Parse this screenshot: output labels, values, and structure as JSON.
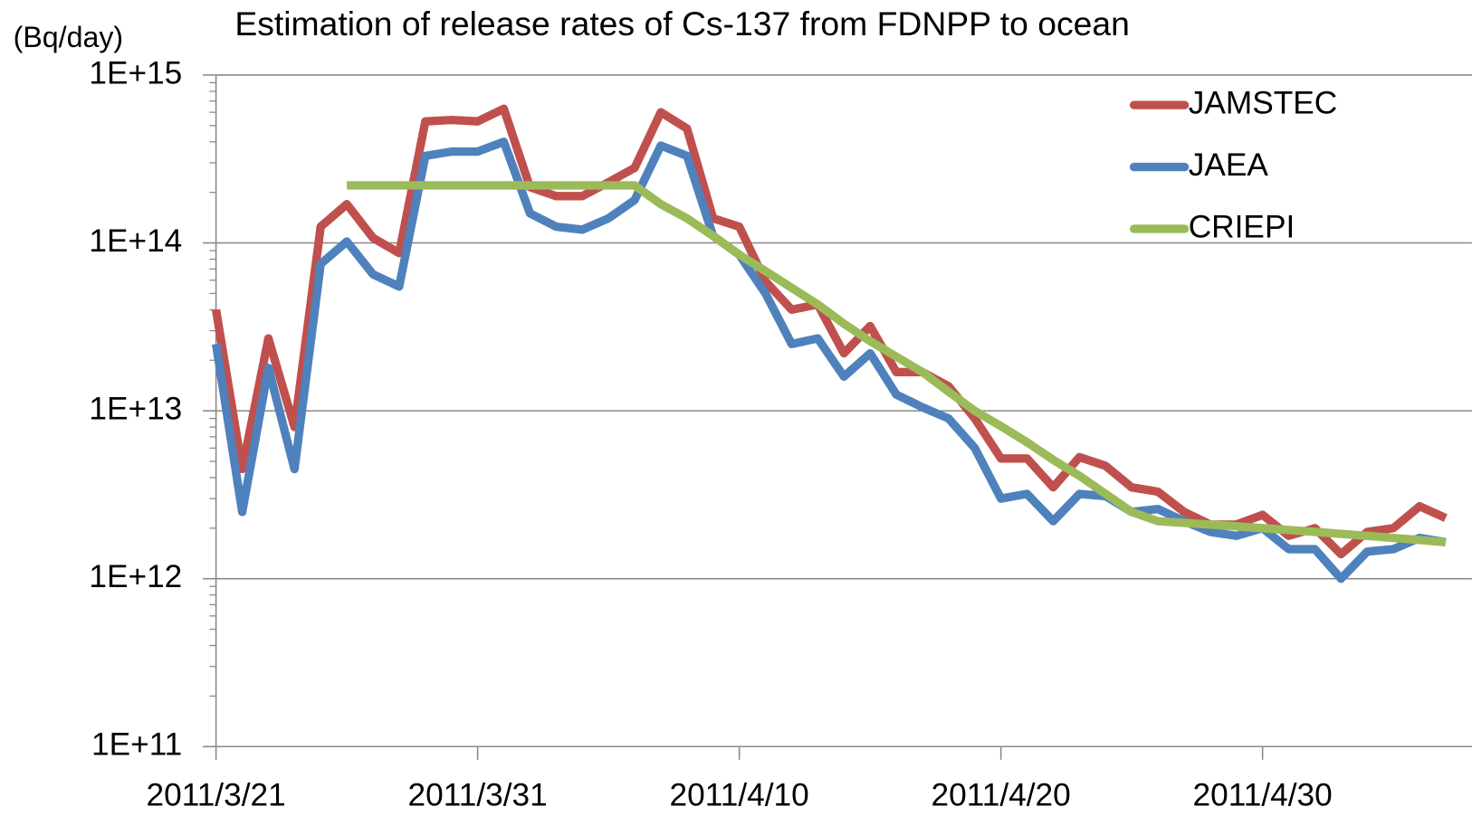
{
  "chart_data": {
    "type": "line",
    "title": "Estimation of release rates of Cs-137 from FDNPP to ocean",
    "y_label": "(Bq/day)",
    "log_y": true,
    "grid": true,
    "legend": "top-right",
    "x": [
      "2011/3/21",
      "2011/3/22",
      "2011/3/23",
      "2011/3/24",
      "2011/3/25",
      "2011/3/26",
      "2011/3/27",
      "2011/3/28",
      "2011/3/29",
      "2011/3/30",
      "2011/3/31",
      "2011/4/1",
      "2011/4/2",
      "2011/4/3",
      "2011/4/4",
      "2011/4/5",
      "2011/4/6",
      "2011/4/7",
      "2011/4/8",
      "2011/4/9",
      "2011/4/10",
      "2011/4/11",
      "2011/4/12",
      "2011/4/13",
      "2011/4/14",
      "2011/4/15",
      "2011/4/16",
      "2011/4/17",
      "2011/4/18",
      "2011/4/19",
      "2011/4/20",
      "2011/4/21",
      "2011/4/22",
      "2011/4/23",
      "2011/4/24",
      "2011/4/25",
      "2011/4/26",
      "2011/4/27",
      "2011/4/28",
      "2011/4/29",
      "2011/4/30",
      "2011/5/1",
      "2011/5/2",
      "2011/5/3",
      "2011/5/4",
      "2011/5/5",
      "2011/5/6",
      "2011/5/7"
    ],
    "xlim": [
      "2011/3/21",
      "2011/5/8"
    ],
    "xticks": [
      "2011/3/21",
      "2011/3/31",
      "2011/4/10",
      "2011/4/20",
      "2011/4/30"
    ],
    "ylim": [
      100000000000.0,
      1000000000000000.0
    ],
    "yticks": [
      {
        "value": 100000000000.0,
        "label": "1E+11"
      },
      {
        "value": 1000000000000.0,
        "label": "1E+12"
      },
      {
        "value": 10000000000000.0,
        "label": "1E+13"
      },
      {
        "value": 100000000000000.0,
        "label": "1E+14"
      },
      {
        "value": 1000000000000000.0,
        "label": "1E+15"
      }
    ],
    "series": [
      {
        "name": "JAMSTEC",
        "color": "#c0504d",
        "values": [
          40000000000000.0,
          4500000000000.0,
          27000000000000.0,
          8000000000000.0,
          125000000000000.0,
          170000000000000.0,
          107000000000000.0,
          87000000000000.0,
          530000000000000.0,
          540000000000000.0,
          530000000000000.0,
          630000000000000.0,
          215000000000000.0,
          190000000000000.0,
          190000000000000.0,
          230000000000000.0,
          280000000000000.0,
          600000000000000.0,
          480000000000000.0,
          140000000000000.0,
          125000000000000.0,
          59000000000000.0,
          40000000000000.0,
          43000000000000.0,
          22000000000000.0,
          32000000000000.0,
          17000000000000.0,
          17000000000000.0,
          14000000000000.0,
          9000000000000.0,
          5200000000000.0,
          5200000000000.0,
          3500000000000.0,
          5300000000000.0,
          4700000000000.0,
          3500000000000.0,
          3300000000000.0,
          2500000000000.0,
          2100000000000.0,
          2100000000000.0,
          2400000000000.0,
          1800000000000.0,
          2000000000000.0,
          1400000000000.0,
          1900000000000.0,
          2000000000000.0,
          2700000000000.0,
          2300000000000.0
        ]
      },
      {
        "name": "JAEA",
        "color": "#4f81bd",
        "values": [
          25000000000000.0,
          2500000000000.0,
          18000000000000.0,
          4500000000000.0,
          75000000000000.0,
          102000000000000.0,
          65000000000000.0,
          55000000000000.0,
          330000000000000.0,
          350000000000000.0,
          350000000000000.0,
          400000000000000.0,
          150000000000000.0,
          125000000000000.0,
          120000000000000.0,
          140000000000000.0,
          180000000000000.0,
          380000000000000.0,
          330000000000000.0,
          110000000000000.0,
          85000000000000.0,
          50000000000000.0,
          25000000000000.0,
          27000000000000.0,
          16000000000000.0,
          22000000000000.0,
          12500000000000.0,
          10500000000000.0,
          9000000000000.0,
          6000000000000.0,
          3000000000000.0,
          3200000000000.0,
          2200000000000.0,
          3200000000000.0,
          3100000000000.0,
          2500000000000.0,
          2600000000000.0,
          2200000000000.0,
          1900000000000.0,
          1800000000000.0,
          2000000000000.0,
          1500000000000.0,
          1500000000000.0,
          1000000000000.0,
          1450000000000.0,
          1500000000000.0,
          1750000000000.0,
          1650000000000.0
        ]
      },
      {
        "name": "CRIEPI",
        "color": "#9bbb59",
        "values": [
          null,
          null,
          null,
          null,
          null,
          220000000000000.0,
          220000000000000.0,
          220000000000000.0,
          220000000000000.0,
          220000000000000.0,
          220000000000000.0,
          220000000000000.0,
          220000000000000.0,
          220000000000000.0,
          220000000000000.0,
          220000000000000.0,
          220000000000000.0,
          170000000000000.0,
          140000000000000.0,
          110000000000000.0,
          85000000000000.0,
          68000000000000.0,
          54000000000000.0,
          43000000000000.0,
          33000000000000.0,
          26000000000000.0,
          21000000000000.0,
          17000000000000.0,
          13000000000000.0,
          10000000000000.0,
          8100000000000.0,
          6500000000000.0,
          5100000000000.0,
          4100000000000.0,
          3200000000000.0,
          2500000000000.0,
          2200000000000.0,
          2150000000000.0,
          2100000000000.0,
          2050000000000.0,
          2000000000000.0,
          1950000000000.0,
          1900000000000.0,
          1850000000000.0,
          1800000000000.0,
          1750000000000.0,
          1700000000000.0,
          1650000000000.0
        ]
      }
    ]
  }
}
